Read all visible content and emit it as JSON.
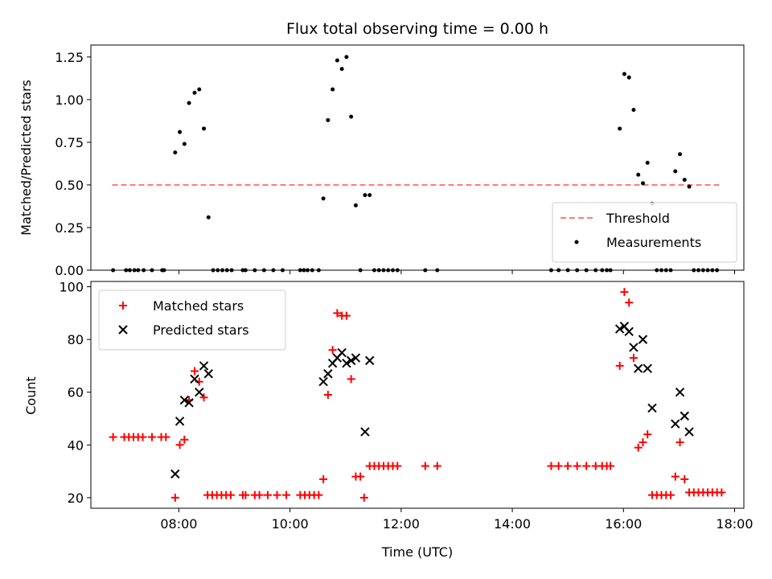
{
  "chart_data": {
    "title": "Flux total observing time = 0.00 h",
    "xlabel": "Time (UTC)",
    "xlim": [
      "06:25",
      "18:10"
    ],
    "x_ticks": [
      "08:00",
      "10:00",
      "12:00",
      "14:00",
      "16:00",
      "18:00"
    ],
    "panels": [
      {
        "type": "scatter",
        "ylabel": "Matched/Predicted stars",
        "ylim": [
          0,
          1.32
        ],
        "y_ticks": [
          "0.00",
          "0.25",
          "0.50",
          "0.75",
          "1.00",
          "1.25"
        ],
        "legend": {
          "placement": "lower-right"
        },
        "series": [
          {
            "name": "Threshold",
            "kind": "line",
            "style": "dashed",
            "color": "#ff7b7b",
            "points": [
              {
                "x": "06:48",
                "y": 0.5
              },
              {
                "x": "17:47",
                "y": 0.5
              }
            ]
          },
          {
            "name": "Measurements",
            "kind": "dots",
            "color": "#000000",
            "points": [
              {
                "x": "06:49",
                "y": 0
              },
              {
                "x": "07:03",
                "y": 0
              },
              {
                "x": "07:07",
                "y": 0
              },
              {
                "x": "07:12",
                "y": 0
              },
              {
                "x": "07:16",
                "y": 0
              },
              {
                "x": "07:22",
                "y": 0
              },
              {
                "x": "07:31",
                "y": 0
              },
              {
                "x": "07:42",
                "y": 0
              },
              {
                "x": "07:44",
                "y": 0
              },
              {
                "x": "07:56",
                "y": 0.69
              },
              {
                "x": "08:01",
                "y": 0.81
              },
              {
                "x": "08:06",
                "y": 0.74
              },
              {
                "x": "08:11",
                "y": 0.98
              },
              {
                "x": "08:17",
                "y": 1.04
              },
              {
                "x": "08:22",
                "y": 1.06
              },
              {
                "x": "08:27",
                "y": 0.83
              },
              {
                "x": "08:32",
                "y": 0.31
              },
              {
                "x": "08:37",
                "y": 0
              },
              {
                "x": "08:42",
                "y": 0
              },
              {
                "x": "08:47",
                "y": 0
              },
              {
                "x": "08:52",
                "y": 0
              },
              {
                "x": "08:57",
                "y": 0
              },
              {
                "x": "09:09",
                "y": 0
              },
              {
                "x": "09:12",
                "y": 0
              },
              {
                "x": "09:22",
                "y": 0
              },
              {
                "x": "09:32",
                "y": 0
              },
              {
                "x": "09:42",
                "y": 0
              },
              {
                "x": "09:52",
                "y": 0
              },
              {
                "x": "10:11",
                "y": 0
              },
              {
                "x": "10:15",
                "y": 0
              },
              {
                "x": "10:19",
                "y": 0
              },
              {
                "x": "10:24",
                "y": 0
              },
              {
                "x": "10:31",
                "y": 0
              },
              {
                "x": "10:36",
                "y": 0.42
              },
              {
                "x": "10:41",
                "y": 0.88
              },
              {
                "x": "10:46",
                "y": 1.06
              },
              {
                "x": "10:51",
                "y": 1.23
              },
              {
                "x": "10:56",
                "y": 1.18
              },
              {
                "x": "11:01",
                "y": 1.25
              },
              {
                "x": "11:06",
                "y": 0.9
              },
              {
                "x": "11:11",
                "y": 0.38
              },
              {
                "x": "11:16",
                "y": 0
              },
              {
                "x": "11:21",
                "y": 0.44
              },
              {
                "x": "11:26",
                "y": 0.44
              },
              {
                "x": "11:31",
                "y": 0
              },
              {
                "x": "11:36",
                "y": 0
              },
              {
                "x": "11:41",
                "y": 0
              },
              {
                "x": "11:46",
                "y": 0
              },
              {
                "x": "11:51",
                "y": 0
              },
              {
                "x": "11:56",
                "y": 0
              },
              {
                "x": "12:26",
                "y": 0
              },
              {
                "x": "12:39",
                "y": 0
              },
              {
                "x": "14:42",
                "y": 0
              },
              {
                "x": "14:50",
                "y": 0
              },
              {
                "x": "15:00",
                "y": 0
              },
              {
                "x": "15:10",
                "y": 0
              },
              {
                "x": "15:20",
                "y": 0
              },
              {
                "x": "15:30",
                "y": 0
              },
              {
                "x": "15:37",
                "y": 0
              },
              {
                "x": "15:42",
                "y": 0
              },
              {
                "x": "15:46",
                "y": 0
              },
              {
                "x": "15:56",
                "y": 0.83
              },
              {
                "x": "16:01",
                "y": 1.15
              },
              {
                "x": "16:06",
                "y": 1.13
              },
              {
                "x": "16:11",
                "y": 0.94
              },
              {
                "x": "16:16",
                "y": 0.56
              },
              {
                "x": "16:21",
                "y": 0.51
              },
              {
                "x": "16:26",
                "y": 0.63
              },
              {
                "x": "16:31",
                "y": 0.39
              },
              {
                "x": "16:36",
                "y": 0
              },
              {
                "x": "16:41",
                "y": 0
              },
              {
                "x": "16:46",
                "y": 0
              },
              {
                "x": "16:51",
                "y": 0
              },
              {
                "x": "16:56",
                "y": 0.58
              },
              {
                "x": "17:01",
                "y": 0.68
              },
              {
                "x": "17:06",
                "y": 0.53
              },
              {
                "x": "17:11",
                "y": 0.49
              },
              {
                "x": "17:16",
                "y": 0
              },
              {
                "x": "17:21",
                "y": 0
              },
              {
                "x": "17:26",
                "y": 0
              },
              {
                "x": "17:31",
                "y": 0
              },
              {
                "x": "17:36",
                "y": 0
              },
              {
                "x": "17:41",
                "y": 0
              }
            ]
          }
        ]
      },
      {
        "type": "scatter",
        "ylabel": "Count",
        "ylim": [
          16,
          102
        ],
        "y_ticks": [
          "20",
          "40",
          "60",
          "80",
          "100"
        ],
        "legend": {
          "placement": "upper-left"
        },
        "series": [
          {
            "name": "Matched stars",
            "kind": "plus",
            "color": "#ff0000",
            "points": [
              {
                "x": "06:49",
                "y": 43
              },
              {
                "x": "07:01",
                "y": 43
              },
              {
                "x": "07:06",
                "y": 43
              },
              {
                "x": "07:11",
                "y": 43
              },
              {
                "x": "07:16",
                "y": 43
              },
              {
                "x": "07:21",
                "y": 43
              },
              {
                "x": "07:31",
                "y": 43
              },
              {
                "x": "07:41",
                "y": 43
              },
              {
                "x": "07:46",
                "y": 43
              },
              {
                "x": "07:56",
                "y": 20
              },
              {
                "x": "08:01",
                "y": 40
              },
              {
                "x": "08:06",
                "y": 42
              },
              {
                "x": "08:11",
                "y": 57
              },
              {
                "x": "08:17",
                "y": 68
              },
              {
                "x": "08:22",
                "y": 64
              },
              {
                "x": "08:27",
                "y": 58
              },
              {
                "x": "08:31",
                "y": 21
              },
              {
                "x": "08:36",
                "y": 21
              },
              {
                "x": "08:41",
                "y": 21
              },
              {
                "x": "08:46",
                "y": 21
              },
              {
                "x": "08:51",
                "y": 21
              },
              {
                "x": "08:56",
                "y": 21
              },
              {
                "x": "09:09",
                "y": 21
              },
              {
                "x": "09:12",
                "y": 21
              },
              {
                "x": "09:22",
                "y": 21
              },
              {
                "x": "09:27",
                "y": 21
              },
              {
                "x": "09:36",
                "y": 21
              },
              {
                "x": "09:46",
                "y": 21
              },
              {
                "x": "09:56",
                "y": 21
              },
              {
                "x": "10:11",
                "y": 21
              },
              {
                "x": "10:16",
                "y": 21
              },
              {
                "x": "10:21",
                "y": 21
              },
              {
                "x": "10:26",
                "y": 21
              },
              {
                "x": "10:31",
                "y": 21
              },
              {
                "x": "10:36",
                "y": 27
              },
              {
                "x": "10:41",
                "y": 59
              },
              {
                "x": "10:46",
                "y": 76
              },
              {
                "x": "10:51",
                "y": 90
              },
              {
                "x": "10:56",
                "y": 89
              },
              {
                "x": "11:01",
                "y": 89
              },
              {
                "x": "11:06",
                "y": 65
              },
              {
                "x": "11:11",
                "y": 28
              },
              {
                "x": "11:16",
                "y": 28
              },
              {
                "x": "11:20",
                "y": 20
              },
              {
                "x": "11:26",
                "y": 32
              },
              {
                "x": "11:31",
                "y": 32
              },
              {
                "x": "11:36",
                "y": 32
              },
              {
                "x": "11:41",
                "y": 32
              },
              {
                "x": "11:46",
                "y": 32
              },
              {
                "x": "11:51",
                "y": 32
              },
              {
                "x": "11:56",
                "y": 32
              },
              {
                "x": "12:26",
                "y": 32
              },
              {
                "x": "12:39",
                "y": 32
              },
              {
                "x": "14:42",
                "y": 32
              },
              {
                "x": "14:50",
                "y": 32
              },
              {
                "x": "15:00",
                "y": 32
              },
              {
                "x": "15:10",
                "y": 32
              },
              {
                "x": "15:20",
                "y": 32
              },
              {
                "x": "15:30",
                "y": 32
              },
              {
                "x": "15:37",
                "y": 32
              },
              {
                "x": "15:42",
                "y": 32
              },
              {
                "x": "15:46",
                "y": 32
              },
              {
                "x": "15:56",
                "y": 70
              },
              {
                "x": "16:01",
                "y": 98
              },
              {
                "x": "16:06",
                "y": 94
              },
              {
                "x": "16:11",
                "y": 73
              },
              {
                "x": "16:16",
                "y": 39
              },
              {
                "x": "16:21",
                "y": 41
              },
              {
                "x": "16:26",
                "y": 44
              },
              {
                "x": "16:31",
                "y": 21
              },
              {
                "x": "16:36",
                "y": 21
              },
              {
                "x": "16:41",
                "y": 21
              },
              {
                "x": "16:46",
                "y": 21
              },
              {
                "x": "16:51",
                "y": 21
              },
              {
                "x": "16:56",
                "y": 28
              },
              {
                "x": "17:01",
                "y": 41
              },
              {
                "x": "17:06",
                "y": 27
              },
              {
                "x": "17:11",
                "y": 22
              },
              {
                "x": "17:16",
                "y": 22
              },
              {
                "x": "17:21",
                "y": 22
              },
              {
                "x": "17:26",
                "y": 22
              },
              {
                "x": "17:31",
                "y": 22
              },
              {
                "x": "17:36",
                "y": 22
              },
              {
                "x": "17:41",
                "y": 22
              },
              {
                "x": "17:46",
                "y": 22
              }
            ]
          },
          {
            "name": "Predicted stars",
            "kind": "x",
            "color": "#000000",
            "points": [
              {
                "x": "07:56",
                "y": 29
              },
              {
                "x": "08:01",
                "y": 49
              },
              {
                "x": "08:06",
                "y": 57
              },
              {
                "x": "08:11",
                "y": 56
              },
              {
                "x": "08:17",
                "y": 65
              },
              {
                "x": "08:22",
                "y": 60
              },
              {
                "x": "08:27",
                "y": 70
              },
              {
                "x": "08:32",
                "y": 67
              },
              {
                "x": "10:36",
                "y": 64
              },
              {
                "x": "10:41",
                "y": 67
              },
              {
                "x": "10:46",
                "y": 71
              },
              {
                "x": "10:51",
                "y": 73
              },
              {
                "x": "10:56",
                "y": 75
              },
              {
                "x": "11:01",
                "y": 71
              },
              {
                "x": "11:06",
                "y": 72
              },
              {
                "x": "11:11",
                "y": 73
              },
              {
                "x": "11:21",
                "y": 45
              },
              {
                "x": "11:26",
                "y": 72
              },
              {
                "x": "15:56",
                "y": 84
              },
              {
                "x": "16:01",
                "y": 85
              },
              {
                "x": "16:06",
                "y": 83
              },
              {
                "x": "16:11",
                "y": 77
              },
              {
                "x": "16:16",
                "y": 69
              },
              {
                "x": "16:21",
                "y": 80
              },
              {
                "x": "16:26",
                "y": 69
              },
              {
                "x": "16:31",
                "y": 54
              },
              {
                "x": "16:56",
                "y": 48
              },
              {
                "x": "17:01",
                "y": 60
              },
              {
                "x": "17:06",
                "y": 51
              },
              {
                "x": "17:11",
                "y": 45
              }
            ]
          }
        ]
      }
    ]
  }
}
